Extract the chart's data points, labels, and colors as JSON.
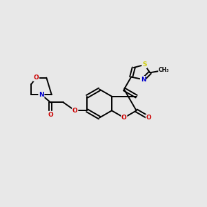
{
  "background_color": "#e8e8e8",
  "atom_colors": {
    "C": "#000000",
    "N": "#0000cc",
    "O": "#cc0000",
    "S": "#cccc00"
  },
  "figsize": [
    3.0,
    3.0
  ],
  "dpi": 100,
  "bond_lw": 1.4,
  "font_size": 6.5
}
